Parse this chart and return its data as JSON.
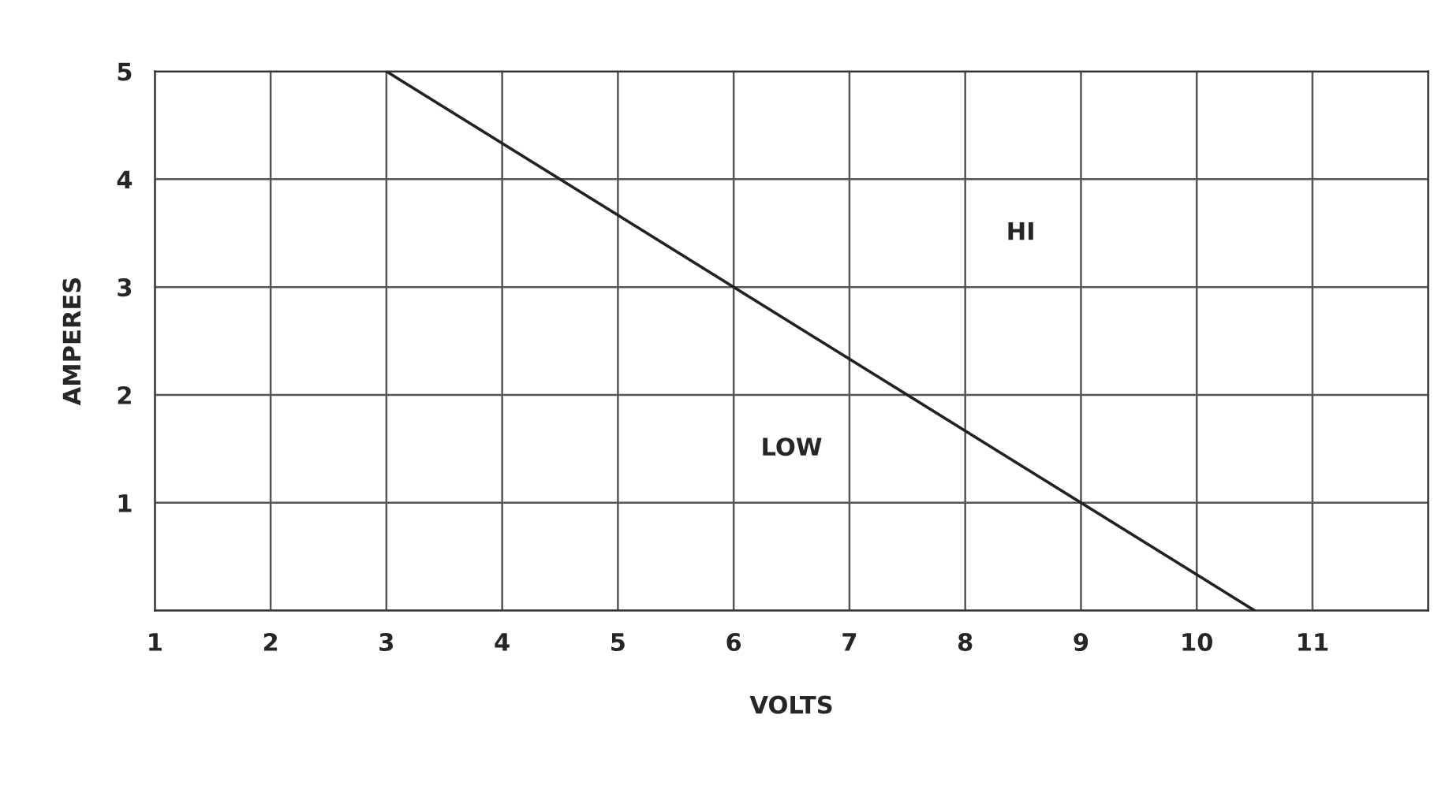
{
  "chart_data": {
    "type": "line",
    "xlabel": "VOLTS",
    "ylabel": "AMPERES",
    "x": [
      3,
      10.5
    ],
    "series": [
      {
        "color": "#222222",
        "values": [
          5,
          0
        ]
      }
    ],
    "xlim": [
      1,
      12
    ],
    "xticks": [
      1,
      2,
      3,
      4,
      5,
      6,
      7,
      8,
      9,
      10,
      11,
      {
        "value": 12,
        "label": null
      }
    ],
    "ylim": [
      0,
      5
    ],
    "yticks": [
      {
        "value": 0,
        "label": null
      },
      1,
      2,
      3,
      4,
      5
    ],
    "grid": true,
    "marker": "none",
    "line_style": "solid",
    "annotations": [
      "HI",
      "LOW"
    ]
  }
}
